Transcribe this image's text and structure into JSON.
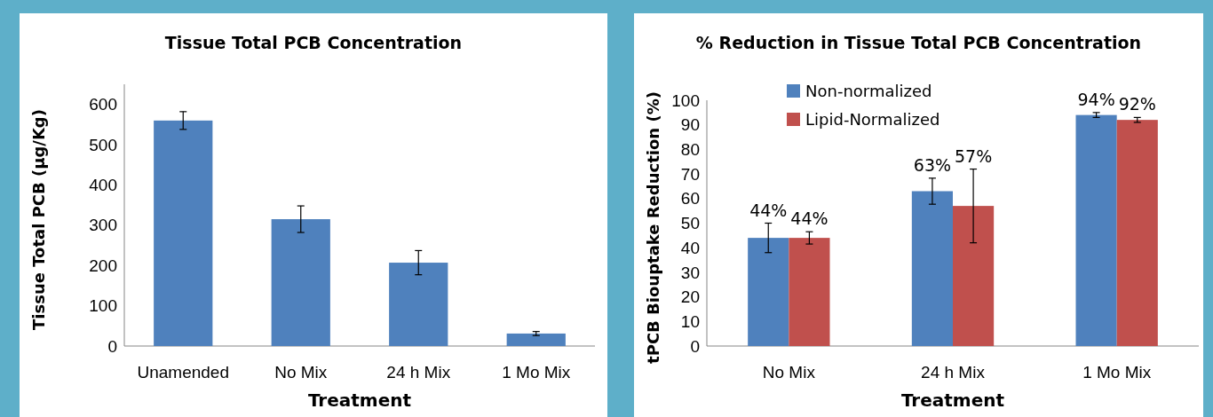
{
  "chart_data": [
    {
      "type": "bar",
      "title": "Tissue Total PCB Concentration",
      "xlabel": "Treatment",
      "ylabel": "Tissue Total PCB (µg/Kg)",
      "categories": [
        "Unamended",
        "No Mix",
        "24 h Mix",
        "1 Mo Mix"
      ],
      "series": [
        {
          "color": "#4f81bd",
          "values": [
            560,
            315,
            207,
            31
          ],
          "errors": [
            22,
            33,
            30,
            5
          ]
        }
      ],
      "ylim": [
        0,
        650
      ],
      "yticks": [
        0,
        100,
        200,
        300,
        400,
        500,
        600
      ],
      "grid": false,
      "legend": false
    },
    {
      "type": "bar",
      "title": "% Reduction in Tissue Total PCB Concentration",
      "xlabel": "Treatment",
      "ylabel": "tPCB Biouptake Reduction (%)",
      "categories": [
        "No Mix",
        "24 h Mix",
        "1 Mo Mix"
      ],
      "series": [
        {
          "name": "Non-normalized",
          "color": "#4f81bd",
          "values": [
            44,
            63,
            94
          ],
          "errors": [
            6,
            5.3,
            1
          ],
          "value_labels": [
            "44%",
            "63%",
            "94%"
          ]
        },
        {
          "name": "Lipid-Normalized",
          "color": "#c0504d",
          "values": [
            44,
            57,
            92
          ],
          "errors": [
            2.5,
            15,
            1
          ],
          "value_labels": [
            "44%",
            "57%",
            "92%"
          ]
        }
      ],
      "ylim": [
        0,
        100
      ],
      "yticks": [
        0,
        10,
        20,
        30,
        40,
        50,
        60,
        70,
        80,
        90,
        100
      ],
      "grid": false,
      "legend": "top left"
    }
  ]
}
